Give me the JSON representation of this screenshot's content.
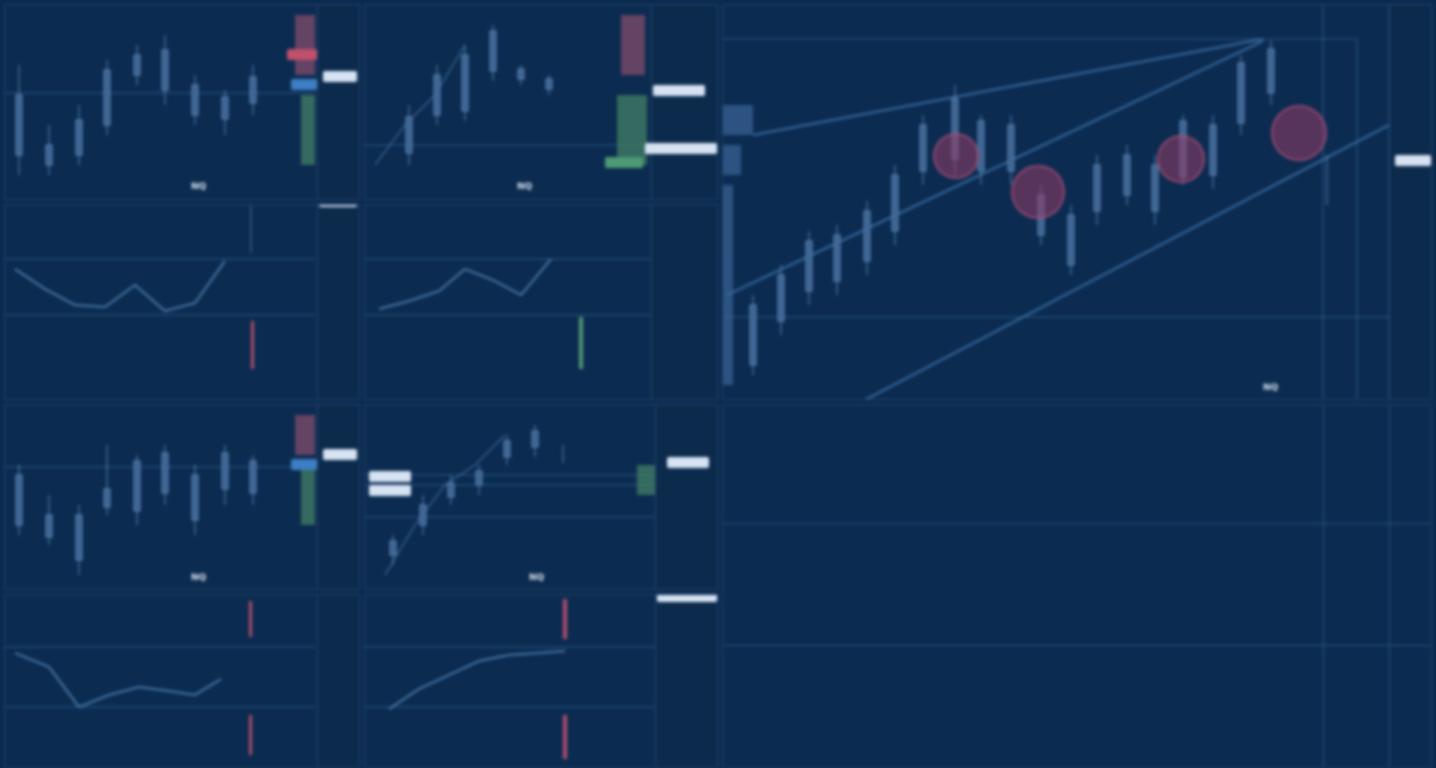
{
  "panels": [
    {
      "id": "p1",
      "badge": "NQ",
      "desc": ""
    },
    {
      "id": "p2",
      "badge": "NQ",
      "desc": ""
    },
    {
      "id": "p3",
      "badge": "NQ",
      "desc": ""
    },
    {
      "id": "p4",
      "badge": "NQ",
      "desc": ""
    },
    {
      "id": "p5",
      "badge": "NQ",
      "desc": ""
    }
  ],
  "colors": {
    "background": "#0a2a4e",
    "grid": "#24466e",
    "candle": "#5f86b3",
    "line": "#4a79aa",
    "bubble": "#9a3d66",
    "up_tag": "#4f9a74",
    "down_tag": "#c0506c"
  }
}
